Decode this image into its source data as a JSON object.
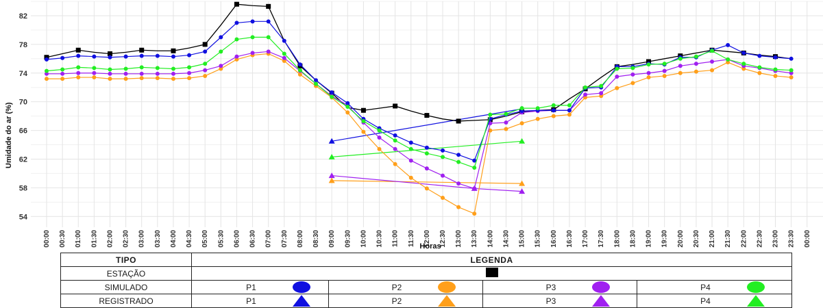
{
  "chart_data": {
    "type": "line",
    "xlabel": "Horas",
    "ylabel": "Umidade do ar (%)",
    "ylim": [
      52.5,
      84
    ],
    "yticks": [
      54,
      58,
      62,
      66,
      70,
      74,
      78,
      82
    ],
    "grid": true,
    "x": [
      "00:00",
      "00:30",
      "01:00",
      "01:30",
      "02:00",
      "02:30",
      "03:00",
      "03:30",
      "04:00",
      "04:30",
      "05:00",
      "05:30",
      "06:00",
      "06:30",
      "07:00",
      "07:30",
      "08:00",
      "08:30",
      "09:00",
      "09:30",
      "10:00",
      "10:30",
      "11:00",
      "11:30",
      "12:00",
      "12:30",
      "13:00",
      "13:30",
      "14:00",
      "14:30",
      "15:00",
      "15:30",
      "16:00",
      "16:30",
      "17:00",
      "17:30",
      "18:00",
      "18:30",
      "19:00",
      "19:30",
      "20:00",
      "20:30",
      "21:00",
      "21:30",
      "22:00",
      "22:30",
      "23:00",
      "23:30"
    ],
    "x_last_tick_partial": "00:00",
    "series": [
      {
        "name": "ESTAÇÃO",
        "color": "#000000",
        "marker": "square",
        "every_other": true,
        "values": [
          76.2,
          76.7,
          77.2,
          76.9,
          76.7,
          76.9,
          77.2,
          77.1,
          77.1,
          77.5,
          78,
          80.7,
          83.6,
          83.4,
          83.3,
          78.5,
          75,
          73,
          71.2,
          69.2,
          68.8,
          69.1,
          69.4,
          68.7,
          68.1,
          67.6,
          67.3,
          67.4,
          67.5,
          68,
          68.6,
          68.8,
          68.9,
          70.4,
          71.8,
          73.4,
          74.9,
          75.2,
          75.6,
          76,
          76.4,
          76.8,
          77.2,
          77,
          76.8,
          76.5,
          76.3,
          76
        ]
      },
      {
        "name": "P1",
        "color": "#1010e0",
        "marker": "circle",
        "values": [
          75.9,
          76.1,
          76.4,
          76.3,
          76.2,
          76.3,
          76.4,
          76.4,
          76.3,
          76.5,
          77,
          79,
          81,
          81.2,
          81.2,
          78.5,
          75.2,
          73,
          71.3,
          69.8,
          67.6,
          66.3,
          65.3,
          64.3,
          63.6,
          63.2,
          62.6,
          61.8,
          67.6,
          68.2,
          68.7,
          68.8,
          68.8,
          68.8,
          71.9,
          72,
          74.9,
          74.9,
          75.3,
          75.2,
          76.2,
          76.2,
          77.2,
          77.9,
          76.8,
          76.4,
          76.2,
          76
        ]
      },
      {
        "name": "P2",
        "color": "#ff9f1a",
        "marker": "circle",
        "values": [
          73.2,
          73.2,
          73.4,
          73.4,
          73.2,
          73.2,
          73.3,
          73.3,
          73.2,
          73.3,
          73.6,
          74.6,
          75.9,
          76.5,
          76.7,
          75.7,
          73.8,
          72.2,
          70.6,
          68.5,
          65.8,
          63.4,
          61.3,
          59.4,
          57.9,
          56.6,
          55.3,
          54.4,
          66,
          66.2,
          67,
          67.6,
          68,
          68.2,
          70.6,
          70.8,
          71.9,
          72.6,
          73.4,
          73.6,
          74,
          74.2,
          74.4,
          75.5,
          74.6,
          74,
          73.6,
          73.4
        ]
      },
      {
        "name": "P3",
        "color": "#a020f0",
        "marker": "circle",
        "values": [
          73.9,
          73.9,
          74,
          74,
          73.9,
          73.9,
          73.9,
          73.9,
          73.9,
          74,
          74.4,
          75,
          76.3,
          76.8,
          77,
          76.1,
          74.3,
          72.5,
          70.8,
          69.5,
          67.1,
          65,
          63.4,
          61.8,
          60.7,
          59.7,
          58.6,
          57.9,
          67,
          67.1,
          68.5,
          68.7,
          68.8,
          68.8,
          71,
          71.2,
          73.5,
          73.8,
          74,
          74.3,
          75,
          75.3,
          75.6,
          75.9,
          75,
          74.7,
          74.3,
          74
        ]
      },
      {
        "name": "P4",
        "color": "#22ee22",
        "marker": "circle",
        "values": [
          74.3,
          74.5,
          74.8,
          74.7,
          74.5,
          74.6,
          74.8,
          74.7,
          74.6,
          74.8,
          75.3,
          77,
          78.7,
          79,
          79,
          76.7,
          74.4,
          72.5,
          70.7,
          69.3,
          67.3,
          66,
          64.6,
          63.4,
          62.8,
          62.3,
          61.6,
          60.8,
          68.2,
          68.3,
          69.1,
          69.1,
          69.5,
          69.5,
          72,
          72.2,
          74.6,
          74.7,
          75.2,
          75.3,
          76,
          76.3,
          77.1,
          75.9,
          75.3,
          74.8,
          74.5,
          74.4
        ]
      }
    ],
    "registered": [
      {
        "name": "P1",
        "color": "#1010e0",
        "marker": "triangle",
        "points": [
          [
            "09:00",
            64.5
          ],
          [
            "15:00",
            69
          ]
        ]
      },
      {
        "name": "P2",
        "color": "#ff9f1a",
        "marker": "triangle",
        "points": [
          [
            "09:00",
            59
          ],
          [
            "15:00",
            58.6
          ]
        ]
      },
      {
        "name": "P3",
        "color": "#a020f0",
        "marker": "triangle",
        "points": [
          [
            "09:00",
            59.7
          ],
          [
            "13:30",
            57.9
          ],
          [
            "15:00",
            57.5
          ]
        ]
      },
      {
        "name": "P4",
        "color": "#22ee22",
        "marker": "triangle",
        "points": [
          [
            "09:00",
            62.3
          ],
          [
            "15:00",
            64.5
          ]
        ]
      }
    ]
  },
  "legend_table": {
    "header_tipo": "TIPO",
    "header_legenda": "LEGENDA",
    "row_estacao": "ESTAÇÃO",
    "row_simulado": "SIMULADO",
    "row_registrado": "REGISTRADO",
    "p1": "P1",
    "p2": "P2",
    "p3": "P3",
    "p4": "P4"
  }
}
